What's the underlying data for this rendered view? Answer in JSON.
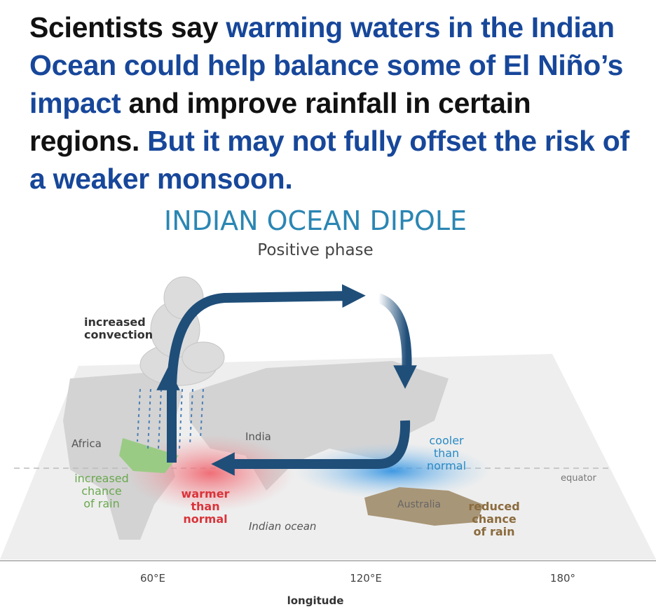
{
  "headline": {
    "segments": [
      {
        "text": "Scientists say",
        "color": "#111111"
      },
      {
        "text": "warming waters in the Indian Ocean could help balance some of El Niño’s impact",
        "color": "#17479a"
      },
      {
        "text": "and improve rainfall in certain regions.",
        "color": "#111111"
      },
      {
        "text": "But it may not fully offset the risk of a weaker monsoon.",
        "color": "#17479a"
      }
    ]
  },
  "diagram": {
    "title": "INDIAN OCEAN DIPOLE",
    "subtitle": "Positive phase",
    "labels": {
      "convection": {
        "lines": [
          "increased",
          "convection"
        ]
      },
      "africa": {
        "lines": [
          "Africa"
        ]
      },
      "india": {
        "lines": [
          "India"
        ]
      },
      "rain_increase": {
        "lines": [
          "increased",
          "chance",
          "of rain"
        ]
      },
      "warmer": {
        "lines": [
          "warmer",
          "than",
          "normal"
        ]
      },
      "ocean": {
        "lines": [
          "Indian ocean"
        ]
      },
      "cooler": {
        "lines": [
          "cooler",
          "than",
          "normal"
        ]
      },
      "equator": {
        "lines": [
          "equator"
        ]
      },
      "australia": {
        "lines": [
          "Australia"
        ]
      },
      "rain_reduced": {
        "lines": [
          "reduced",
          "chance",
          "of rain"
        ]
      }
    },
    "longitudes": [
      "60°E",
      "120°E",
      "180°"
    ],
    "axis_label": "longitude"
  }
}
